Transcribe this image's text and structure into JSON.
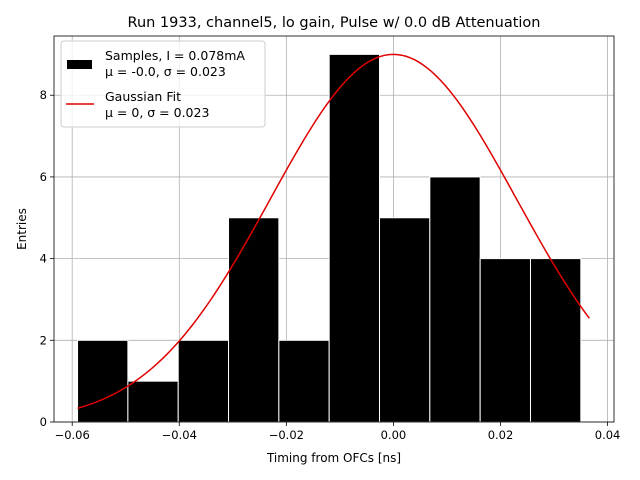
{
  "chart_data": {
    "type": "bar",
    "title": "Run 1933, channel5, lo gain, Pulse w/ 0.0 dB Attenuation",
    "xlabel": "Timing from OFCs [ns]",
    "ylabel": "Entries",
    "xlim": [
      -0.0634,
      0.0412
    ],
    "ylim": [
      0,
      9.45
    ],
    "grid": true,
    "legend_position": "top-left",
    "x_ticks": [
      {
        "value": -0.06,
        "label": "−0.06"
      },
      {
        "value": -0.04,
        "label": "−0.04"
      },
      {
        "value": -0.02,
        "label": "−0.02"
      },
      {
        "value": 0.0,
        "label": "0.00"
      },
      {
        "value": 0.02,
        "label": "0.02"
      },
      {
        "value": 0.04,
        "label": "0.04"
      }
    ],
    "y_ticks": [
      {
        "value": 0,
        "label": "0"
      },
      {
        "value": 2,
        "label": "2"
      },
      {
        "value": 4,
        "label": "4"
      },
      {
        "value": 6,
        "label": "6"
      },
      {
        "value": 8,
        "label": "8"
      }
    ],
    "histogram": {
      "bin_edges": [
        -0.059,
        -0.0496,
        -0.0402,
        -0.0308,
        -0.0214,
        -0.012,
        -0.0026,
        0.0068,
        0.0162,
        0.0256,
        0.035
      ],
      "counts": [
        2,
        1,
        2,
        5,
        2,
        9,
        5,
        6,
        4,
        4
      ],
      "color": "#000000"
    },
    "fit": {
      "amplitude": 9.0,
      "mu": 0.0,
      "sigma": 0.023,
      "x_range": [
        -0.059,
        0.0366
      ],
      "color": "#e00000"
    },
    "legend": [
      {
        "line1": "Samples, I = 0.078mA",
        "line2": "μ = -0.0, σ = 0.023",
        "marker": "patch",
        "color": "#000000"
      },
      {
        "line1": "Gaussian Fit",
        "line2": "μ = 0, σ = 0.023",
        "marker": "line",
        "color": "#e00000"
      }
    ]
  }
}
